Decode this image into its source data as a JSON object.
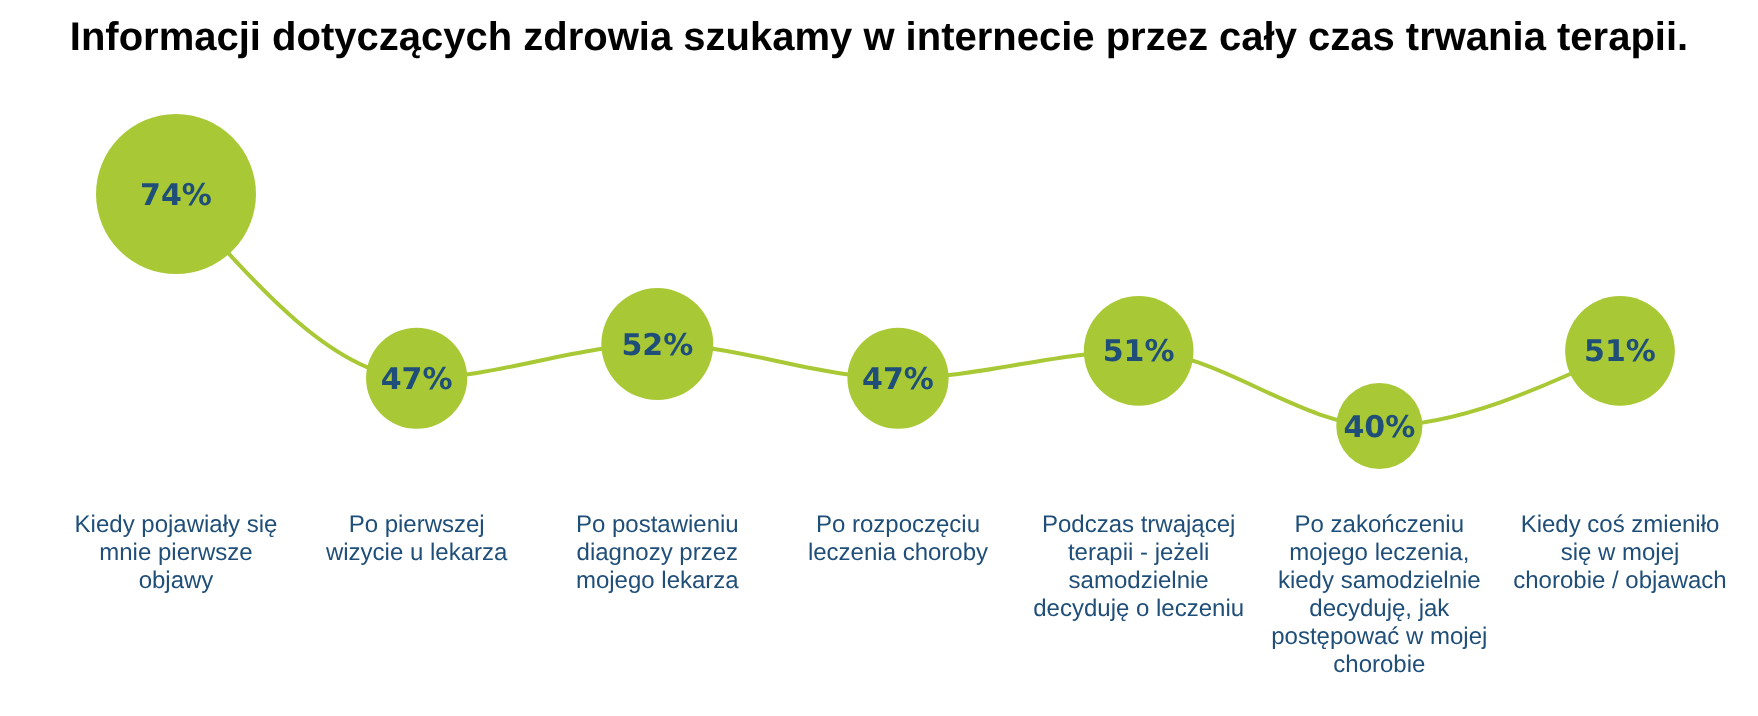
{
  "chart_data": {
    "type": "line",
    "title": "Informacji dotyczących zdrowia szukamy w internecie przez cały czas trwania terapii.",
    "categories": [
      "Kiedy pojawiały się mnie pierwsze objawy",
      "Po pierwszej wizycie u lekarza",
      "Po postawieniu diagnozy przez mojego lekarza",
      "Po rozpoczęciu leczenia choroby",
      "Podczas trwającej terapii - jeżeli samodzielnie decyduję o leczeniu",
      "Po zakończeniu mojego leczenia, kiedy samodzielnie decyduję, jak postępować w mojej chorobie",
      "Kiedy coś zmieniło się w mojej chorobie / objawach"
    ],
    "series": [
      {
        "color": "#a8c935",
        "values": [
          74,
          47,
          52,
          47,
          51,
          40,
          51
        ]
      },
      {
        "type": "bubble",
        "color": "#a8c935",
        "values": [
          74,
          47,
          52,
          47,
          51,
          40,
          51
        ],
        "sizes": [
          1,
          0.4,
          0.49,
          0.4,
          0.47,
          0.29,
          0.47
        ],
        "value_labels": [
          "74%",
          "47%",
          "52%",
          "47%",
          "51%",
          "40%",
          "51%"
        ]
      }
    ]
  }
}
